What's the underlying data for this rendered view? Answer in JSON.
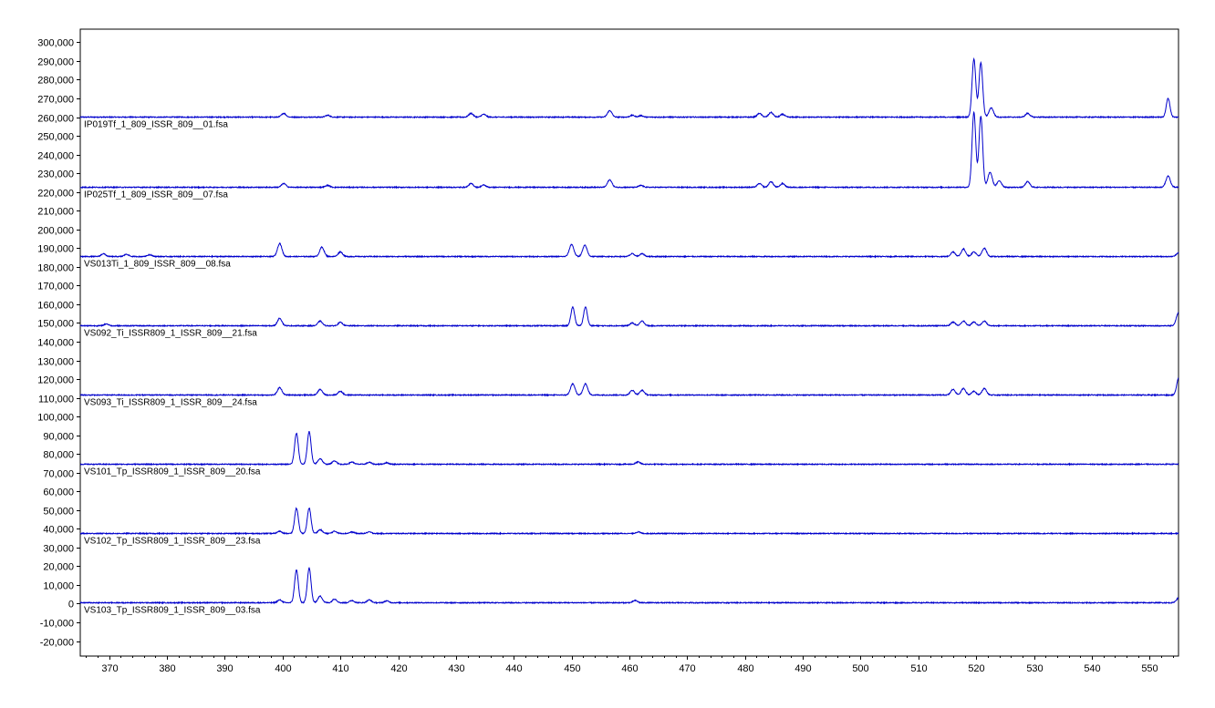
{
  "chart_data": {
    "type": "line",
    "title": "",
    "xlabel": "",
    "ylabel": "",
    "xlim": [
      365,
      555
    ],
    "ylim": [
      -28000,
      307000
    ],
    "x_ticks": [
      370,
      380,
      390,
      400,
      410,
      420,
      430,
      440,
      450,
      460,
      470,
      480,
      490,
      500,
      510,
      520,
      530,
      540,
      550
    ],
    "x_tick_labels": [
      "370",
      "380",
      "390",
      "400",
      "410",
      "420",
      "430",
      "440",
      "450",
      "460",
      "470",
      "480",
      "490",
      "500",
      "510",
      "520",
      "530",
      "540",
      "550"
    ],
    "y_ticks": [
      300000,
      290000,
      280000,
      270000,
      260000,
      250000,
      240000,
      230000,
      220000,
      210000,
      200000,
      190000,
      180000,
      170000,
      160000,
      150000,
      140000,
      130000,
      120000,
      110000,
      100000,
      90000,
      80000,
      70000,
      60000,
      50000,
      40000,
      30000,
      20000,
      10000,
      0,
      -10000,
      -20000
    ],
    "y_tick_labels": [
      "300,000",
      "290,000",
      "280,000",
      "270,000",
      "260,000",
      "250,000",
      "240,000",
      "230,000",
      "220,000",
      "210,000",
      "200,000",
      "190,000",
      "180,000",
      "170,000",
      "160,000",
      "150,000",
      "140,000",
      "130,000",
      "120,000",
      "110,000",
      "100,000",
      "90,000",
      "80,000",
      "70,000",
      "60,000",
      "50,000",
      "40,000",
      "30,000",
      "20,000",
      "10,000",
      "0",
      "-10,000",
      "-20,000"
    ],
    "grid": false,
    "line_color": "#0000cc",
    "series": [
      {
        "name": "IP019Tf_1_809_ISSR_809__01.fsa",
        "baseline": 260000,
        "peaks": [
          [
            400.2,
            2000
          ],
          [
            407.8,
            1000
          ],
          [
            432.6,
            2000
          ],
          [
            434.8,
            1500
          ],
          [
            456.6,
            3500
          ],
          [
            460.5,
            1000
          ],
          [
            462,
            800
          ],
          [
            482.5,
            2000
          ],
          [
            484.5,
            2500
          ],
          [
            486.5,
            1500
          ],
          [
            519.6,
            31000
          ],
          [
            520.8,
            29000
          ],
          [
            522.6,
            5000
          ],
          [
            528.9,
            2000
          ],
          [
            553.2,
            10000
          ]
        ]
      },
      {
        "name": "IP025Tf_1_809_ISSR_809__07.fsa",
        "baseline": 222500,
        "peaks": [
          [
            400.2,
            2000
          ],
          [
            407.8,
            1000
          ],
          [
            432.6,
            2000
          ],
          [
            434.8,
            1200
          ],
          [
            456.6,
            4000
          ],
          [
            462,
            1000
          ],
          [
            482.5,
            2000
          ],
          [
            484.5,
            3000
          ],
          [
            486.5,
            2000
          ],
          [
            519.6,
            40000
          ],
          [
            520.8,
            38000
          ],
          [
            522.4,
            8000
          ],
          [
            524,
            3500
          ],
          [
            528.9,
            3000
          ],
          [
            553.2,
            6000
          ]
        ]
      },
      {
        "name": "VS013Ti_1_809_ISSR_809__08.fsa",
        "baseline": 185500,
        "peaks": [
          [
            369,
            1500
          ],
          [
            373,
            1200
          ],
          [
            377,
            1000
          ],
          [
            399.5,
            7000
          ],
          [
            406.8,
            5000
          ],
          [
            410,
            2500
          ],
          [
            450,
            6500
          ],
          [
            452.3,
            6000
          ],
          [
            460.5,
            1500
          ],
          [
            462.2,
            1500
          ],
          [
            516,
            2500
          ],
          [
            517.8,
            4000
          ],
          [
            519.6,
            2500
          ],
          [
            521.4,
            4500
          ],
          [
            555,
            2000
          ]
        ]
      },
      {
        "name": "VS092_Ti_ISSR809_1_ISSR_809__21.fsa",
        "baseline": 148500,
        "peaks": [
          [
            369.5,
            1000
          ],
          [
            399.5,
            4000
          ],
          [
            406.5,
            2500
          ],
          [
            410,
            1800
          ],
          [
            450.2,
            10000
          ],
          [
            452.4,
            10000
          ],
          [
            460.5,
            1500
          ],
          [
            462.2,
            2500
          ],
          [
            516,
            2000
          ],
          [
            517.8,
            2500
          ],
          [
            519.6,
            2000
          ],
          [
            521.4,
            2500
          ],
          [
            555,
            7000
          ]
        ]
      },
      {
        "name": "VS093_Ti_ISSR809_1_ISSR_809__24.fsa",
        "baseline": 111500,
        "peaks": [
          [
            399.5,
            4000
          ],
          [
            406.5,
            3000
          ],
          [
            410,
            2000
          ],
          [
            450.2,
            6000
          ],
          [
            452.4,
            6000
          ],
          [
            460.5,
            2500
          ],
          [
            462.2,
            2500
          ],
          [
            516,
            3000
          ],
          [
            517.8,
            3500
          ],
          [
            519.6,
            2000
          ],
          [
            521.4,
            3500
          ],
          [
            555,
            9000
          ]
        ]
      },
      {
        "name": "VS101_Tp_ISSR809_1_ISSR_809__20.fsa",
        "baseline": 74500,
        "peaks": [
          [
            402.4,
            16500
          ],
          [
            404.6,
            17500
          ],
          [
            406.5,
            3000
          ],
          [
            409,
            1800
          ],
          [
            412,
            1200
          ],
          [
            415,
            1000
          ],
          [
            418,
            800
          ],
          [
            461.5,
            1200
          ]
        ]
      },
      {
        "name": "VS102_Tp_ISSR809_1_ISSR_809__23.fsa",
        "baseline": 37500,
        "peaks": [
          [
            399.5,
            1200
          ],
          [
            402.4,
            13500
          ],
          [
            404.6,
            13500
          ],
          [
            406.5,
            2000
          ],
          [
            409,
            1200
          ],
          [
            412,
            800
          ],
          [
            415,
            800
          ],
          [
            461.5,
            800
          ]
        ]
      },
      {
        "name": "VS103_Tp_ISSR809_1_ISSR_809__03.fsa",
        "baseline": 500,
        "peaks": [
          [
            399.5,
            1500
          ],
          [
            402.4,
            17500
          ],
          [
            404.6,
            18500
          ],
          [
            406.5,
            3500
          ],
          [
            409,
            2000
          ],
          [
            412,
            1200
          ],
          [
            415,
            1500
          ],
          [
            418,
            1000
          ],
          [
            461,
            1200
          ],
          [
            555,
            2500
          ]
        ]
      }
    ]
  }
}
